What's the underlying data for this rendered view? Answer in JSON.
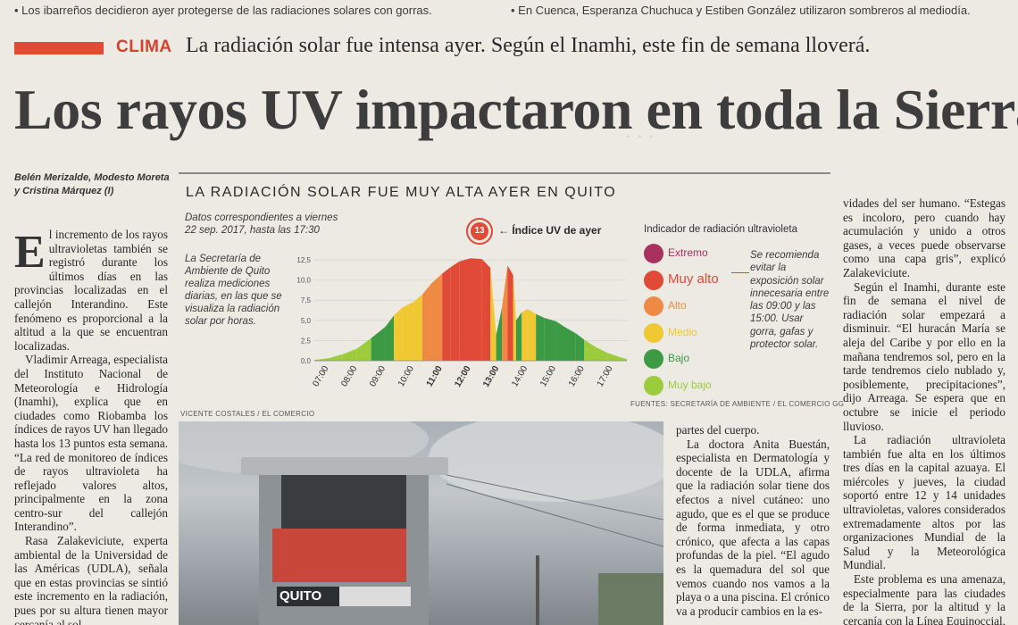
{
  "top": {
    "left_bullet": "• Los ibarreños decidieron ayer protegerse de las radiaciones solares con gorras.",
    "right_bullet": "• En Cuenca, Esperanza Chuchuca y Estiben González utilizaron sombreros al mediodía."
  },
  "kicker": "CLIMA",
  "subhead": "La radiación solar fue intensa ayer. Según el Inamhi, este fin de semana lloverá.",
  "headline": "Los rayos UV impactaron en toda la Sierra",
  "byline": "Belén Merizalde, Modesto Moreta y Cristina Márquez (I)",
  "chart": {
    "title": "LA RADIACIÓN SOLAR FUE MUY ALTA AYER EN QUITO",
    "date_note": "Datos correspondientes a viernes 22 sep. 2017, hasta las 17:30",
    "source_note": "La Secretaría de Ambiente de Quito realiza mediciones diarias, en las que se visualiza la radiación solar por horas.",
    "index_value": "13",
    "index_label": "← Índice UV de ayer",
    "legend_title": "Indicador de radiación ultravioleta",
    "levels": [
      {
        "label": "Extremo",
        "color": "#a8305e"
      },
      {
        "label": "Muy alto",
        "color": "#e04a36"
      },
      {
        "label": "Alto",
        "color": "#ee8a43"
      },
      {
        "label": "Medio",
        "color": "#f0c832"
      },
      {
        "label": "Bajo",
        "color": "#3c9a44"
      },
      {
        "label": "Muy bajo",
        "color": "#9ccc3c"
      }
    ],
    "recommendation": "Se recomienda evitar la exposición solar innecesaria entre las 09:00 y las 15:00. Usar gorra, gafas y protector solar.",
    "sources": "FUENTES: SECRETARÍA DE AMBIENTE / EL COMERCIO GG"
  },
  "chart_data": {
    "type": "area",
    "x_ticks": [
      "07:00",
      "08:00",
      "09:00",
      "10:00",
      "11:00",
      "12:00",
      "13:00",
      "14:00",
      "15:00",
      "16:00",
      "17:00"
    ],
    "y_ticks": [
      "0,0",
      "2,5",
      "5,0",
      "7,5",
      "10,0",
      "12,5"
    ],
    "ylim": [
      0,
      13.5
    ],
    "xlim": [
      6.5,
      17.5
    ],
    "points": [
      [
        6.5,
        0.1
      ],
      [
        7,
        0.3
      ],
      [
        7.5,
        0.8
      ],
      [
        8,
        1.5
      ],
      [
        8.5,
        2.8
      ],
      [
        9,
        4.2
      ],
      [
        9.3,
        5.6
      ],
      [
        9.6,
        6.6
      ],
      [
        10,
        7.3
      ],
      [
        10.3,
        8.2
      ],
      [
        10.6,
        9.5
      ],
      [
        11,
        10.8
      ],
      [
        11.3,
        11.6
      ],
      [
        11.6,
        12.3
      ],
      [
        12,
        12.7
      ],
      [
        12.4,
        12.6
      ],
      [
        12.7,
        11.5
      ],
      [
        12.9,
        3.2
      ],
      [
        13.1,
        6.5
      ],
      [
        13.3,
        11.8
      ],
      [
        13.5,
        10.6
      ],
      [
        13.6,
        5.0
      ],
      [
        13.8,
        6.0
      ],
      [
        14,
        6.4
      ],
      [
        14.3,
        5.8
      ],
      [
        14.6,
        5.3
      ],
      [
        15,
        4.9
      ],
      [
        15.3,
        4.2
      ],
      [
        15.7,
        3.4
      ],
      [
        16,
        2.6
      ],
      [
        16.4,
        1.7
      ],
      [
        16.8,
        1.0
      ],
      [
        17.2,
        0.5
      ],
      [
        17.5,
        0.2
      ]
    ]
  },
  "photo_credit": "VICENTE COSTALES / EL COMERCIO",
  "photo_sign": "QUITO",
  "columns": {
    "col1": [
      "El incremento de los rayos ultravioletas también se registró durante los últimos días en las provincias localizadas en el callejón Interandino. Este fenómeno es proporcional a la altitud a la que se encuentran localizadas.",
      "Vladimir Arreaga, especialista del Instituto Nacional de Meteorología e Hidrología (Inamhi), explica que en ciudades como Riobamba los índices de rayos UV han llegado hasta los 13 puntos esta semana. “La red de monitoreo de índices de rayos ultravioleta ha reflejado valores altos, principalmente en la zona centro-sur del callejón Interandino”.",
      "Rasa Zalakeviciute, experta ambiental de la Universidad de las Américas (UDLA), señala que en estas provincias se sintió este incremento en la radiación, pues por su altura tienen mayor cercanía al sol."
    ],
    "col_mid": [
      "partes del cuerpo.",
      "La doctora Anita Buestán, especialista en Dermatología y docente de la UDLA, afirma que la radiación solar tiene dos efectos a nivel cutáneo: uno agudo, que es el que se produce de forma inmediata, y otro crónico, que afecta a las capas profundas de la piel. “El agudo es la quemadura del sol que vemos cuando nos vamos a la playa o a una piscina. El crónico va a producir cambios en la es-"
    ],
    "col_right": [
      "vidades del ser humano. “Estegas es incoloro, pero cuando hay acumulación y unido a otros gases, a veces puede observarse como una capa gris”, explicó Zalakeviciute.",
      "Según el Inamhi, durante este fin de semana el nivel de radiación solar empezará a disminuir. “El huracán María se aleja del Caribe y por ello en la mañana tendremos sol, pero en la tarde tendremos cielo nublado y, posiblemente, precipitaciones”, dijo Arreaga. Se espera que en octubre se inicie el periodo lluvioso.",
      "La radiación ultravioleta también fue alta en los últimos tres días en la capital azuaya. El miércoles y jueves, la ciudad soportó entre 12 y 14 unidades ultravioletas, valores considerados extremadamente altos por las organizaciones Mundial de la Salud y la Meteorológica Mundial.",
      "Este problema es una amenaza, especialmente para las ciudades de la Sierra, por la altitud y la cercanía con la Línea Equinoccial, dijo Pablo Tene-"
    ]
  }
}
